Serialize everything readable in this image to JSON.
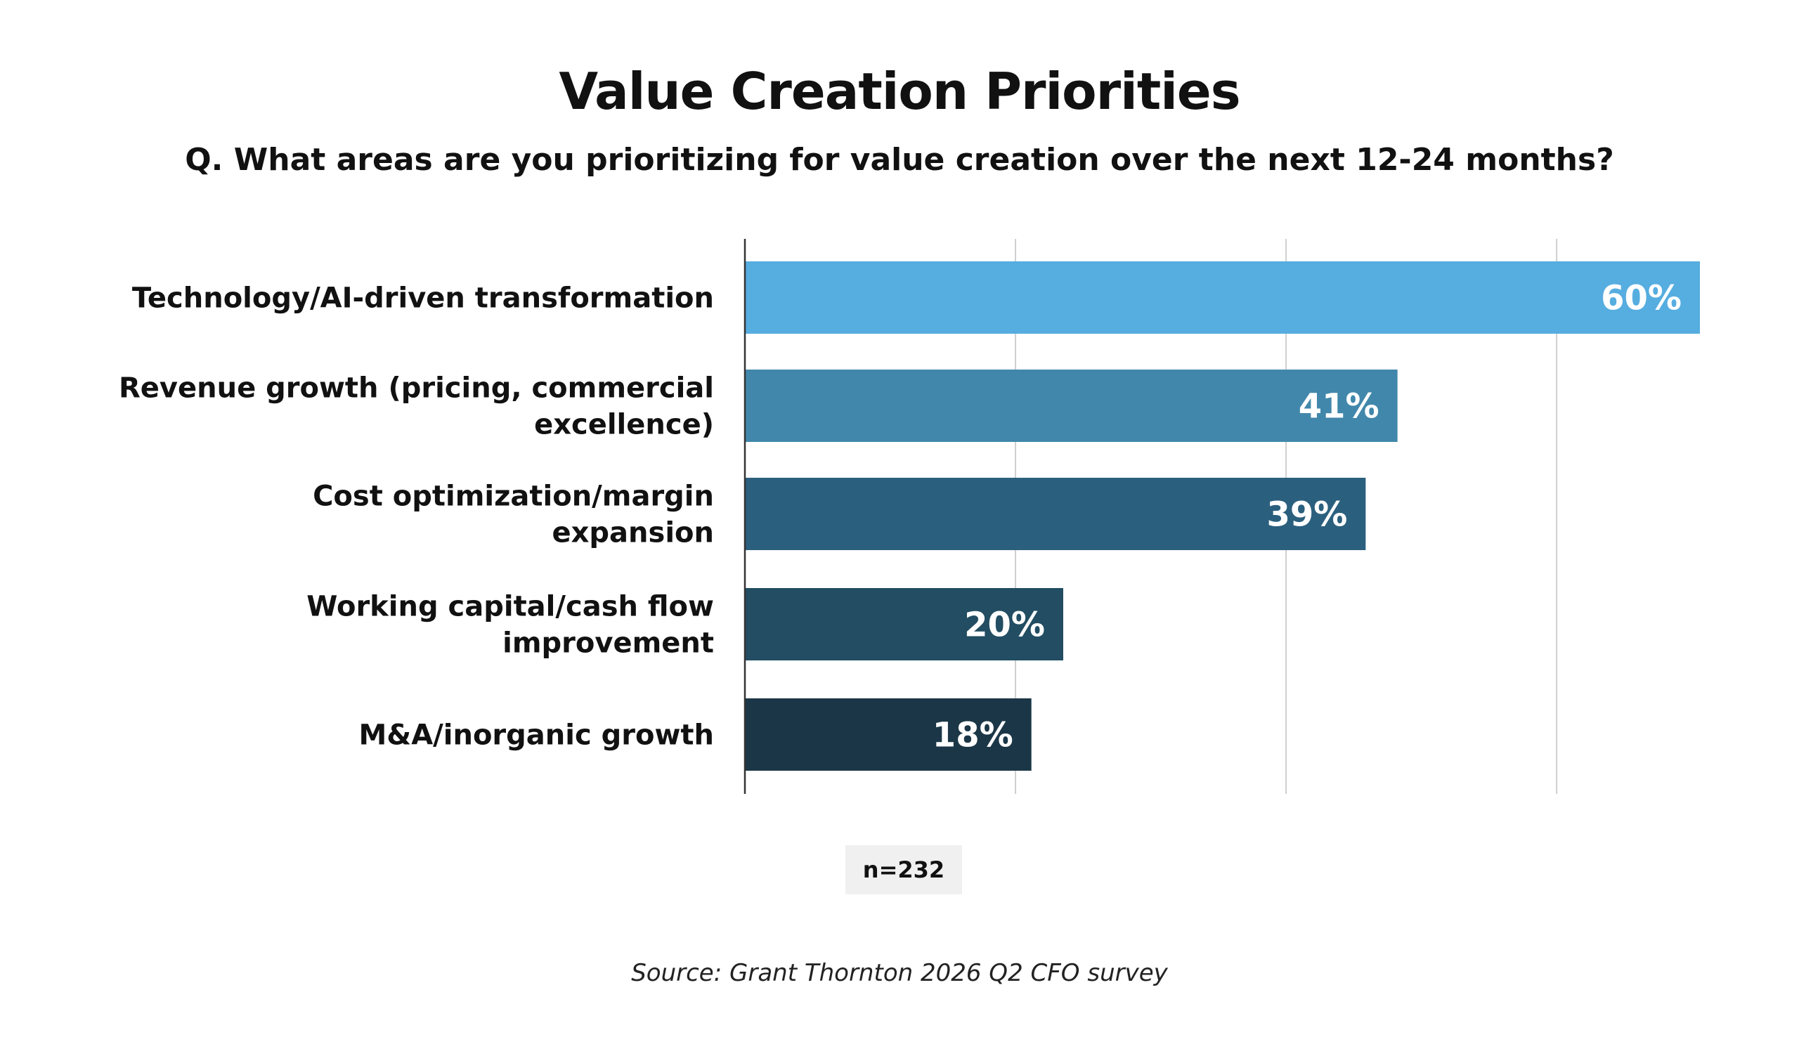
{
  "chart_data": {
    "type": "bar",
    "orientation": "horizontal",
    "title": "Value Creation Priorities",
    "subtitle": "Q. What areas are you prioritizing for value creation over the next 12-24 months?",
    "categories": [
      "Technology/AI-driven transformation",
      "Revenue growth (pricing, commercial excellence)",
      "Cost optimization/margin expansion",
      "Working capital/cash flow improvement",
      "M&A/inorganic growth"
    ],
    "category_label_lines": [
      [
        "Technology/AI-driven transformation"
      ],
      [
        "Revenue growth (pricing, commercial",
        "excellence)"
      ],
      [
        "Cost optimization/margin",
        "expansion"
      ],
      [
        "Working capital/cash flow",
        "improvement"
      ],
      [
        "M&A/inorganic growth"
      ]
    ],
    "values": [
      60,
      41,
      39,
      20,
      18
    ],
    "value_labels": [
      "60%",
      "41%",
      "39%",
      "20%",
      "18%"
    ],
    "colors": [
      "#56ade0",
      "#4187ab",
      "#2b5f7e",
      "#224d62",
      "#1b3747"
    ],
    "xlim": [
      0,
      60
    ],
    "grid": true,
    "legend": "none"
  },
  "note": "n=232",
  "source": "Source: Grant Thornton 2026 Q2 CFO survey"
}
